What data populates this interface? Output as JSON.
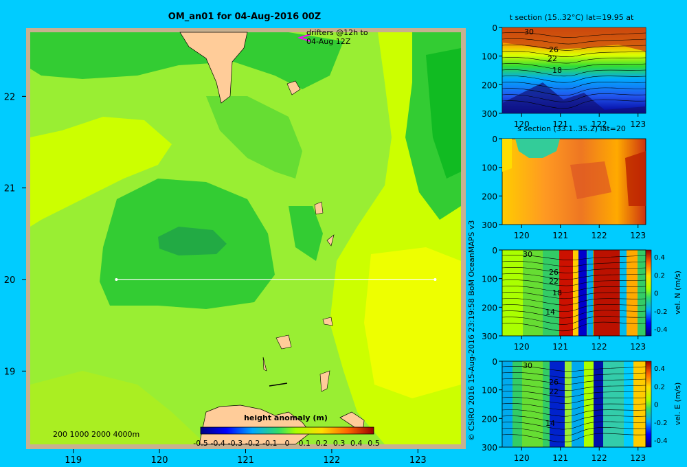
{
  "main_map": {
    "title": "OM_an01 for 04-Aug-2016 00Z",
    "x_ticks": [
      119,
      120,
      121,
      122,
      123
    ],
    "y_ticks": [
      19,
      20,
      21,
      22
    ],
    "xlim": [
      118.5,
      123.5
    ],
    "ylim": [
      18.2,
      22.7
    ],
    "section_line": {
      "lon": [
        119.5,
        123.2
      ],
      "lat": 20
    },
    "drifters_label_1": "drifters @12h to",
    "drifters_label_2": "04-Aug 12Z",
    "depth_legend": "200  1000  2000  4000m",
    "colorbar_title": "height anomaly  (m)",
    "colorbar_ticks": [
      "-0.5",
      "-0.4",
      "-0.3",
      "-0.2",
      "-0.1",
      "0",
      "0.1",
      "0.2",
      "0.3",
      "0.4",
      "0.5"
    ]
  },
  "credit": "© CSIRO 2016   15-Aug-2016 23:19:58 BoM OceanMAPS v3",
  "panels": [
    {
      "title": "t section (15..32°C) lat=19.95 at",
      "contour_labels": [
        "30",
        "26",
        "22",
        "18"
      ],
      "colorbar": null
    },
    {
      "title": "s section (33.1..35.2) lat=20",
      "contour_labels": [],
      "colorbar": null
    },
    {
      "title": "",
      "contour_labels": [
        "30",
        "26",
        "22",
        "18",
        "14"
      ],
      "colorbar": {
        "label": "vel. N  (m/s)",
        "ticks": [
          "0.4",
          "0.2",
          "0",
          "-0.2",
          "-0.4"
        ]
      }
    },
    {
      "title": "",
      "contour_labels": [
        "30",
        "26",
        "22",
        "14"
      ],
      "colorbar": {
        "label": "vel. E  (m/s)",
        "ticks": [
          "0.4",
          "0.2",
          "0",
          "-0.2",
          "-0.4"
        ]
      }
    }
  ],
  "section_axes": {
    "x_ticks": [
      120,
      121,
      122,
      123
    ],
    "xlim": [
      119.5,
      123.2
    ],
    "y_ticks": [
      0,
      100,
      200,
      300
    ],
    "ylim": [
      0,
      300
    ]
  },
  "chart_data": [
    {
      "type": "heatmap",
      "title": "OM_an01 for 04-Aug-2016 00Z",
      "xlim": [
        118.5,
        123.5
      ],
      "ylim": [
        18.2,
        22.7
      ],
      "x_ticks": [
        119,
        120,
        121,
        122,
        123
      ],
      "y_ticks": [
        19,
        20,
        21,
        22
      ],
      "colorbar_label": "height anomaly  (m)",
      "colorbar_range": [
        -0.5,
        0.5
      ]
    },
    {
      "type": "heatmap",
      "title": "t section (15..32°C) lat=19.95 at",
      "xlim": [
        119.5,
        123.2
      ],
      "ylim": [
        300,
        0
      ]
    },
    {
      "type": "heatmap",
      "title": "s section (33.1..35.2) lat=20",
      "xlim": [
        119.5,
        123.2
      ],
      "ylim": [
        300,
        0
      ]
    },
    {
      "type": "heatmap",
      "title": "vel. N  (m/s)",
      "xlim": [
        119.5,
        123.2
      ],
      "ylim": [
        300,
        0
      ],
      "colorbar_range": [
        -0.4,
        0.4
      ]
    },
    {
      "type": "heatmap",
      "title": "vel. E  (m/s)",
      "xlim": [
        119.5,
        123.2
      ],
      "ylim": [
        300,
        0
      ],
      "colorbar_range": [
        -0.4,
        0.4
      ]
    }
  ]
}
